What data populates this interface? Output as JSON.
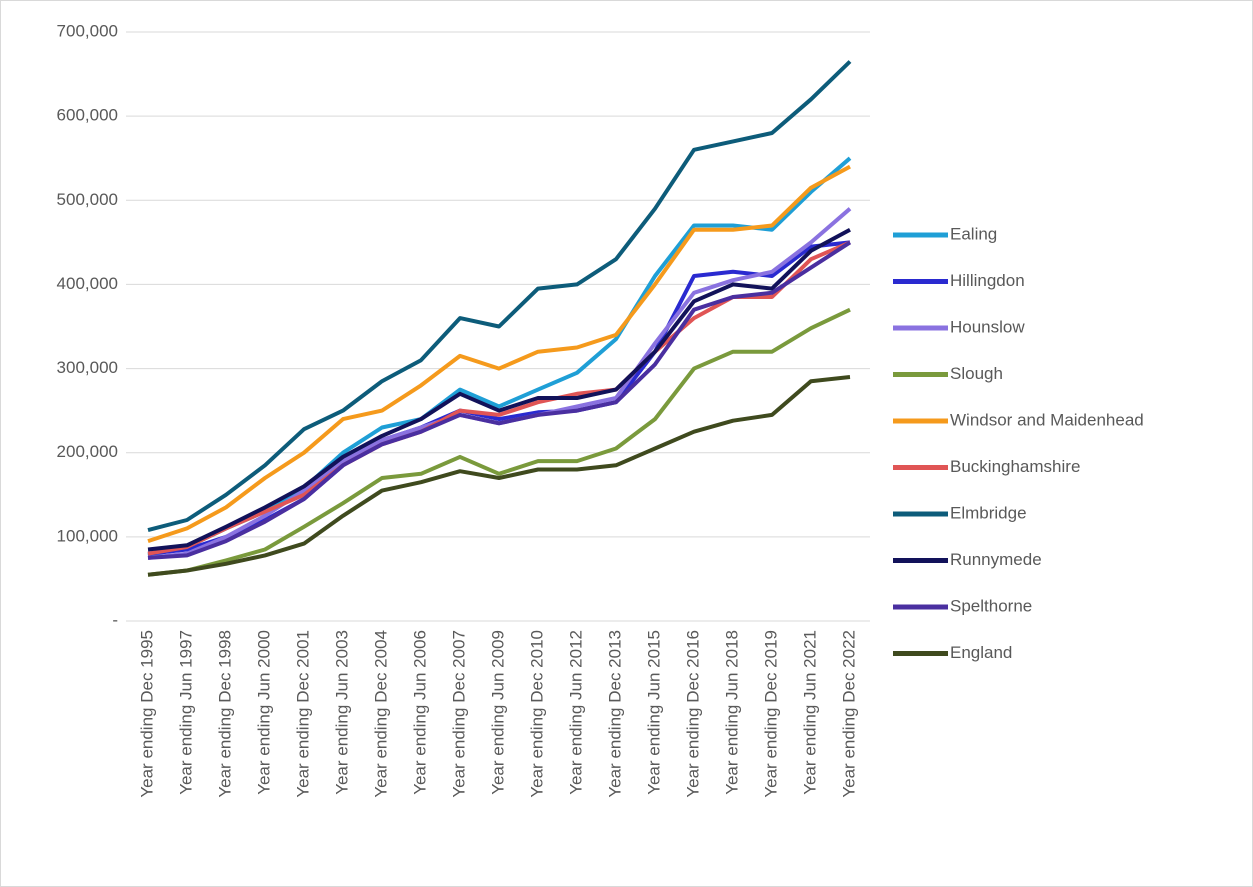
{
  "chart_data": {
    "type": "line",
    "categories": [
      "Year ending Dec 1995",
      "Year ending Jun 1997",
      "Year ending Dec 1998",
      "Year ending Jun 2000",
      "Year ending Dec 2001",
      "Year ending Jun 2003",
      "Year ending Dec 2004",
      "Year ending Jun 2006",
      "Year ending Dec 2007",
      "Year ending Jun 2009",
      "Year ending Dec 2010",
      "Year ending Jun 2012",
      "Year ending Dec 2013",
      "Year ending Jun 2015",
      "Year ending Dec 2016",
      "Year ending Jun 2018",
      "Year ending Dec 2019",
      "Year ending Jun 2021",
      "Year ending Dec 2022"
    ],
    "ylim": [
      0,
      700000
    ],
    "yticks": [
      {
        "value": 0,
        "label": "-"
      },
      {
        "value": 100000,
        "label": "100,000"
      },
      {
        "value": 200000,
        "label": "200,000"
      },
      {
        "value": 300000,
        "label": "300,000"
      },
      {
        "value": 400000,
        "label": "400,000"
      },
      {
        "value": 500000,
        "label": "500,000"
      },
      {
        "value": 600000,
        "label": "600,000"
      },
      {
        "value": 700000,
        "label": "700,000"
      }
    ],
    "grid": true,
    "legend": "right",
    "series": [
      {
        "name": "Ealing",
        "color": "#1f9fd6",
        "values": [
          78000,
          88000,
          110000,
          130000,
          158000,
          200000,
          230000,
          240000,
          275000,
          255000,
          275000,
          295000,
          335000,
          410000,
          470000,
          470000,
          465000,
          510000,
          550000
        ]
      },
      {
        "name": "Hillingdon",
        "color": "#2a2ad0",
        "values": [
          80000,
          85000,
          100000,
          120000,
          145000,
          185000,
          215000,
          230000,
          250000,
          240000,
          248000,
          250000,
          260000,
          320000,
          410000,
          415000,
          410000,
          445000,
          450000
        ]
      },
      {
        "name": "Hounslow",
        "color": "#8a72e0",
        "values": [
          75000,
          80000,
          100000,
          125000,
          155000,
          190000,
          215000,
          230000,
          245000,
          235000,
          245000,
          255000,
          265000,
          330000,
          390000,
          405000,
          415000,
          450000,
          490000
        ]
      },
      {
        "name": "Slough",
        "color": "#7a9a3c",
        "values": [
          55000,
          60000,
          72000,
          85000,
          112000,
          140000,
          170000,
          175000,
          195000,
          175000,
          190000,
          190000,
          205000,
          240000,
          300000,
          320000,
          320000,
          348000,
          370000
        ]
      },
      {
        "name": "Windsor and Maidenhead",
        "color": "#f59a1c",
        "values": [
          95000,
          110000,
          135000,
          170000,
          200000,
          240000,
          250000,
          280000,
          315000,
          300000,
          320000,
          325000,
          340000,
          400000,
          465000,
          465000,
          470000,
          515000,
          540000
        ]
      },
      {
        "name": "Buckinghamshire",
        "color": "#e05555",
        "values": [
          80000,
          88000,
          110000,
          130000,
          150000,
          185000,
          210000,
          225000,
          250000,
          245000,
          260000,
          270000,
          275000,
          320000,
          360000,
          385000,
          385000,
          430000,
          450000
        ]
      },
      {
        "name": "Elmbridge",
        "color": "#0d5c7a",
        "values": [
          108000,
          120000,
          150000,
          185000,
          228000,
          250000,
          285000,
          310000,
          360000,
          350000,
          395000,
          400000,
          430000,
          490000,
          560000,
          570000,
          580000,
          620000,
          665000
        ]
      },
      {
        "name": "Runnymede",
        "color": "#12125a",
        "values": [
          85000,
          90000,
          112000,
          135000,
          160000,
          195000,
          220000,
          240000,
          270000,
          250000,
          265000,
          265000,
          275000,
          320000,
          380000,
          400000,
          395000,
          440000,
          465000
        ]
      },
      {
        "name": "Spelthorne",
        "color": "#4a2fa0",
        "values": [
          75000,
          78000,
          95000,
          118000,
          145000,
          185000,
          210000,
          225000,
          245000,
          235000,
          245000,
          250000,
          260000,
          305000,
          370000,
          385000,
          390000,
          420000,
          450000
        ]
      },
      {
        "name": "England",
        "color": "#3f4a1e",
        "values": [
          55000,
          60000,
          68000,
          78000,
          92000,
          125000,
          155000,
          165000,
          178000,
          170000,
          180000,
          180000,
          185000,
          205000,
          225000,
          238000,
          245000,
          285000,
          290000
        ]
      }
    ]
  }
}
